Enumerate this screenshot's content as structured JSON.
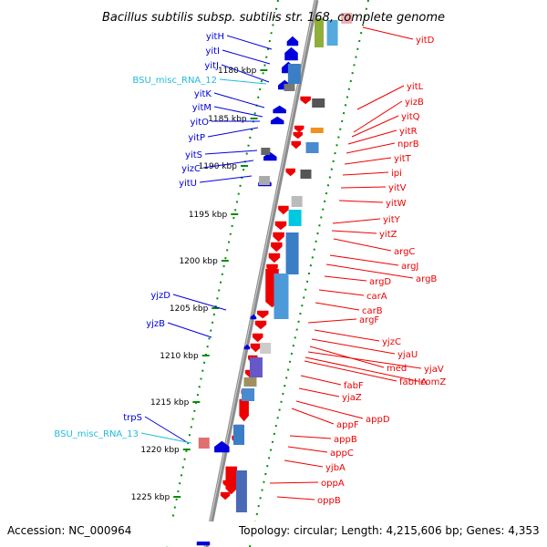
{
  "title": "Bacillus subtilis subsp. subtilis str. 168, complete genome",
  "footer": {
    "accession": "Accession: NC_000964",
    "topology": "Topology: circular; Length: 4,215,606 bp; Genes: 4,353"
  },
  "colors": {
    "backbone": "#8c8c8c",
    "tick": "#0a8a0a",
    "minus_gene": "#0000dd",
    "plus_gene": "#ee0000",
    "misc_rna": "#22bbdd"
  },
  "scale_labels": [
    "1180 kbp",
    "1185 kbp",
    "1190 kbp",
    "1195 kbp",
    "1200 kbp",
    "1205 kbp",
    "1210 kbp",
    "1215 kbp",
    "1220 kbp",
    "1225 kbp"
  ],
  "left_labels": [
    "yitH",
    "yitI",
    "yitJ",
    "BSU_misc_RNA_12",
    "yitK",
    "yitM",
    "yitO",
    "yitP",
    "yitS",
    "yizC",
    "yitU",
    "yjzD",
    "yjzB",
    "trpS",
    "BSU_misc_RNA_13"
  ],
  "right_labels": [
    "yitD",
    "yitL",
    "yizB",
    "yitQ",
    "yitR",
    "nprB",
    "yitT",
    "ipi",
    "yitV",
    "yitW",
    "yitY",
    "yitZ",
    "argC",
    "argJ",
    "argB",
    "argD",
    "carA",
    "carB",
    "argF",
    "yjzC",
    "yjaU",
    "med",
    "yjaV",
    "fabHA",
    "comZ",
    "fabF",
    "yjaZ",
    "appD",
    "appF",
    "appB",
    "appC",
    "yjbA",
    "oppA",
    "oppB"
  ]
}
